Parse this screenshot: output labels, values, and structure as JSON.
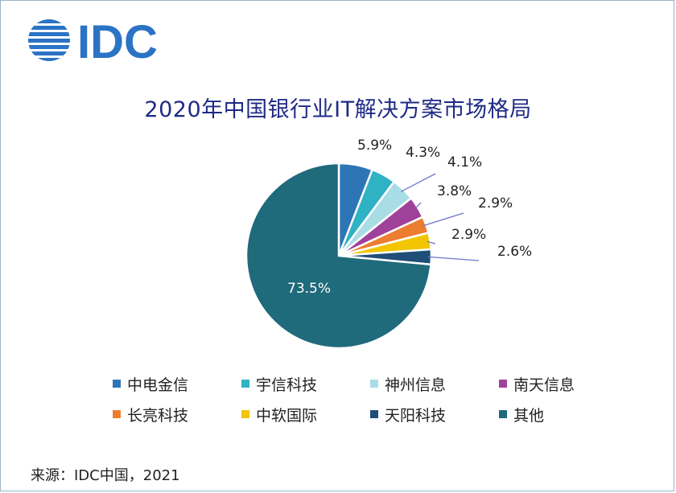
{
  "header": {
    "logo_text": "IDC"
  },
  "source": "来源：IDC中国，2021",
  "chart_data": {
    "type": "pie",
    "title": "2020年中国银行业IT解决方案市场格局",
    "series": [
      {
        "categories": [
          "中电金信",
          "宇信科技",
          "神州信息",
          "南天信息",
          "长亮科技",
          "中软国际",
          "天阳科技",
          "其他"
        ],
        "values": [
          5.9,
          4.3,
          4.1,
          3.8,
          2.9,
          2.9,
          2.6,
          73.5
        ],
        "labels": [
          "5.9%",
          "4.3%",
          "4.1%",
          "3.8%",
          "2.9%",
          "2.9%",
          "2.6%",
          "73.5%"
        ],
        "colors": [
          "#2e75b6",
          "#2fb2c4",
          "#a9dde6",
          "#a0419a",
          "#ed7d31",
          "#f2c500",
          "#1f4e79",
          "#1f6a7b"
        ]
      }
    ],
    "legend_position": "bottom"
  }
}
